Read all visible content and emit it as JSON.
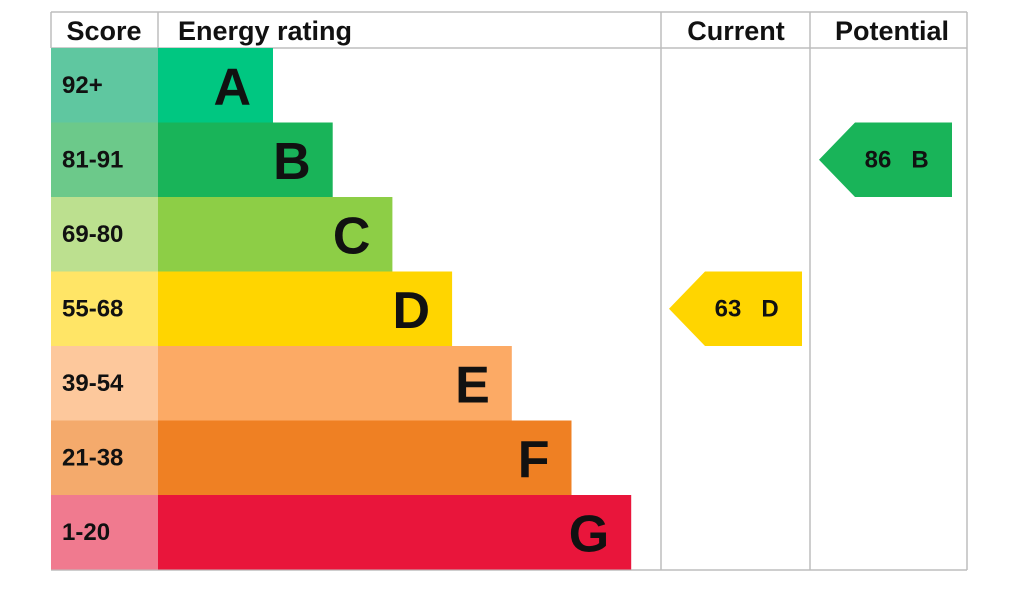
{
  "header": {
    "score": "Score",
    "rating": "Energy rating",
    "current": "Current",
    "potential": "Potential"
  },
  "bands": [
    {
      "score": "92+",
      "letter": "A",
      "color": "#00c781",
      "score_color": "#5fc7a0"
    },
    {
      "score": "81-91",
      "letter": "B",
      "color": "#19b459",
      "score_color": "#6cc98a"
    },
    {
      "score": "69-80",
      "letter": "C",
      "color": "#8dce46",
      "score_color": "#bce08f"
    },
    {
      "score": "55-68",
      "letter": "D",
      "color": "#ffd500",
      "score_color": "#ffe566"
    },
    {
      "score": "39-54",
      "letter": "E",
      "color": "#fcaa65",
      "score_color": "#fdc89c"
    },
    {
      "score": "21-38",
      "letter": "F",
      "color": "#ef8023",
      "score_color": "#f4aa6c"
    },
    {
      "score": "1-20",
      "letter": "G",
      "color": "#e9153b",
      "score_color": "#f07a8f"
    }
  ],
  "current": {
    "value": 63,
    "rating": "D"
  },
  "potential": {
    "value": 86,
    "rating": "B"
  }
}
